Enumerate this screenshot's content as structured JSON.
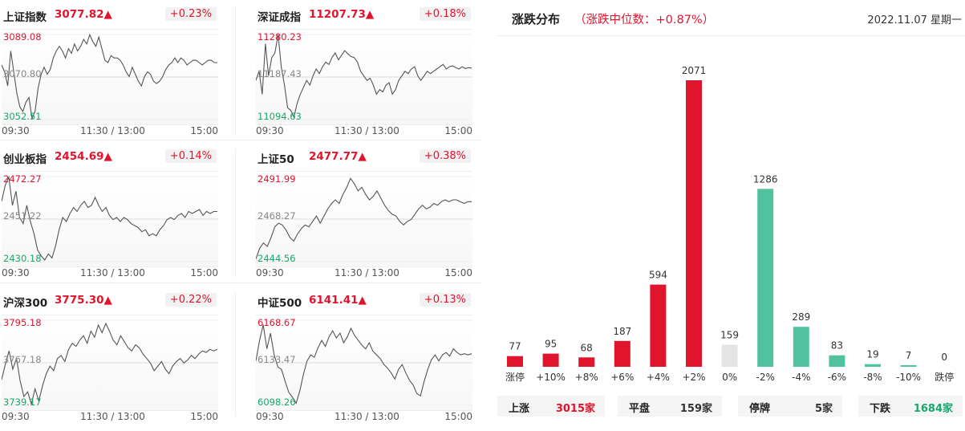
{
  "panels": [
    {
      "name": "上证指数",
      "value": "3077.82▲",
      "pct": "+0.23%",
      "hi": "3089.08",
      "mid": "3070.80",
      "lo": "3052.51",
      "t0": "09:30",
      "t1": "11:30 / 13:00",
      "t2": "15:00",
      "series": [
        3076,
        3073,
        3067,
        3082,
        3073,
        3064,
        3058,
        3056,
        3060,
        3062,
        3053,
        3056,
        3066,
        3072,
        3075,
        3072,
        3074,
        3079,
        3082,
        3084,
        3082,
        3079,
        3083,
        3081,
        3085,
        3082,
        3084,
        3087,
        3085,
        3089,
        3086,
        3084,
        3088,
        3083,
        3078,
        3077,
        3080,
        3079,
        3079,
        3078,
        3076,
        3073,
        3071,
        3075,
        3072,
        3069,
        3067,
        3071,
        3073,
        3072,
        3069,
        3068,
        3069,
        3071,
        3074,
        3076,
        3077,
        3079,
        3077,
        3079,
        3078,
        3076,
        3077,
        3078,
        3078,
        3077,
        3076,
        3077,
        3078,
        3078,
        3077,
        3077
      ]
    },
    {
      "name": "深证成指",
      "value": "11207.73▲",
      "pct": "+0.18%",
      "hi": "11280.23",
      "mid": "11187.43",
      "lo": "11094.63",
      "t0": "09:30",
      "t1": "11:30 / 13:00",
      "t2": "15:00",
      "series": [
        11180,
        11200,
        11150,
        11260,
        11190,
        11230,
        11240,
        11280,
        11210,
        11170,
        11120,
        11115,
        11100,
        11130,
        11150,
        11165,
        11180,
        11170,
        11190,
        11205,
        11195,
        11210,
        11220,
        11215,
        11230,
        11240,
        11225,
        11235,
        11245,
        11238,
        11232,
        11230,
        11220,
        11200,
        11190,
        11180,
        11185,
        11170,
        11150,
        11160,
        11155,
        11170,
        11175,
        11150,
        11160,
        11180,
        11190,
        11200,
        11195,
        11205,
        11210,
        11190,
        11180,
        11190,
        11200,
        11195,
        11200,
        11205,
        11210,
        11215,
        11205,
        11210,
        11212,
        11208,
        11205,
        11210,
        11206,
        11208,
        11207
      ]
    },
    {
      "name": "创业板指",
      "value": "2454.69▲",
      "pct": "+0.14%",
      "hi": "2472.27",
      "mid": "2451.22",
      "lo": "2430.18",
      "t0": "09:30",
      "t1": "11:30 / 13:00",
      "t2": "15:00",
      "series": [
        2460,
        2468,
        2472,
        2458,
        2465,
        2452,
        2449,
        2458,
        2450,
        2444,
        2436,
        2433,
        2431,
        2434,
        2432,
        2438,
        2446,
        2452,
        2450,
        2454,
        2457,
        2455,
        2458,
        2460,
        2457,
        2458,
        2462,
        2458,
        2455,
        2457,
        2453,
        2451,
        2452,
        2450,
        2452,
        2451,
        2449,
        2448,
        2447,
        2445,
        2446,
        2443,
        2444,
        2443,
        2446,
        2448,
        2451,
        2452,
        2451,
        2453,
        2454,
        2452,
        2455,
        2454,
        2455,
        2456,
        2453,
        2455,
        2454,
        2455,
        2455
      ]
    },
    {
      "name": "上证50",
      "value": "2477.77▲",
      "pct": "+0.38%",
      "hi": "2491.99",
      "mid": "2468.27",
      "lo": "2444.56",
      "t0": "09:30",
      "t1": "11:30 / 13:00",
      "t2": "15:00",
      "series": [
        2446,
        2452,
        2455,
        2453,
        2458,
        2464,
        2466,
        2465,
        2462,
        2458,
        2456,
        2460,
        2463,
        2465,
        2464,
        2467,
        2470,
        2466,
        2470,
        2474,
        2477,
        2479,
        2477,
        2482,
        2486,
        2491,
        2488,
        2484,
        2486,
        2482,
        2479,
        2481,
        2484,
        2480,
        2476,
        2473,
        2471,
        2470,
        2467,
        2465,
        2467,
        2468,
        2471,
        2474,
        2476,
        2474,
        2475,
        2477,
        2476,
        2478,
        2479,
        2478,
        2479,
        2479,
        2478,
        2477,
        2478,
        2478
      ]
    },
    {
      "name": "沪深300",
      "value": "3775.30▲",
      "pct": "+0.22%",
      "hi": "3795.18",
      "mid": "3767.18",
      "lo": "3739.17",
      "t0": "09:30",
      "t1": "11:30 / 13:00",
      "t2": "15:00",
      "series": [
        3756,
        3766,
        3775,
        3763,
        3770,
        3755,
        3745,
        3748,
        3740,
        3750,
        3742,
        3752,
        3760,
        3765,
        3762,
        3770,
        3772,
        3768,
        3776,
        3780,
        3778,
        3782,
        3785,
        3780,
        3788,
        3784,
        3792,
        3787,
        3793,
        3788,
        3782,
        3779,
        3785,
        3781,
        3777,
        3775,
        3779,
        3777,
        3773,
        3770,
        3767,
        3762,
        3765,
        3768,
        3763,
        3760,
        3765,
        3768,
        3770,
        3767,
        3769,
        3772,
        3770,
        3773,
        3775,
        3774,
        3776,
        3775,
        3776
      ]
    },
    {
      "name": "中证500",
      "value": "6141.41▲",
      "pct": "+0.13%",
      "hi": "6168.67",
      "mid": "6133.47",
      "lo": "6098.26",
      "t0": "09:30",
      "t1": "11:30 / 13:00",
      "t2": "15:00",
      "series": [
        6135,
        6152,
        6165,
        6145,
        6158,
        6140,
        6130,
        6128,
        6118,
        6109,
        6105,
        6100,
        6110,
        6124,
        6135,
        6140,
        6138,
        6146,
        6152,
        6147,
        6155,
        6160,
        6154,
        6158,
        6150,
        6155,
        6162,
        6156,
        6152,
        6148,
        6145,
        6150,
        6143,
        6140,
        6137,
        6132,
        6129,
        6125,
        6120,
        6128,
        6132,
        6125,
        6119,
        6115,
        6108,
        6106,
        6118,
        6128,
        6136,
        6140,
        6135,
        6140,
        6142,
        6139,
        6145,
        6142,
        6140,
        6141,
        6140,
        6141
      ]
    }
  ],
  "dist": {
    "title": "涨跌分布",
    "subtitle": "（涨跌中位数：+0.87%）",
    "date": "2022.11.07 星期一"
  },
  "chart_data": {
    "type": "bar",
    "title": "涨跌分布",
    "categories": [
      "涨停",
      "+10%",
      "+8%",
      "+6%",
      "+4%",
      "+2%",
      "0%",
      "-2%",
      "-4%",
      "-6%",
      "-8%",
      "-10%",
      "跌停"
    ],
    "values": [
      77,
      95,
      68,
      187,
      594,
      2071,
      159,
      1286,
      289,
      83,
      19,
      7,
      0
    ],
    "colors": [
      "#e0142d",
      "#e0142d",
      "#e0142d",
      "#e0142d",
      "#e0142d",
      "#e0142d",
      "#e4e4e4",
      "#52c19d",
      "#52c19d",
      "#52c19d",
      "#52c19d",
      "#52c19d",
      "#52c19d"
    ]
  },
  "summary": [
    {
      "key": "上涨",
      "value": "3015家",
      "color": "#e0142d"
    },
    {
      "key": "平盘",
      "value": "159家",
      "color": "#333333"
    },
    {
      "key": "停牌",
      "value": "5家",
      "color": "#333333"
    },
    {
      "key": "下跌",
      "value": "1684家",
      "color": "#18a86b"
    }
  ]
}
